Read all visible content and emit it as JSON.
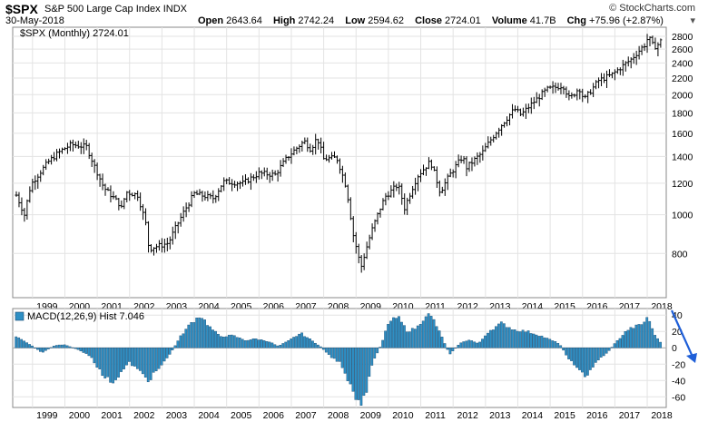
{
  "header": {
    "symbol": "$SPX",
    "name": "S&P 500 Large Cap Index",
    "exchange": "INDX",
    "date": "30-May-2018",
    "open_label": "Open",
    "open": "2643.64",
    "high_label": "High",
    "high": "2742.24",
    "low_label": "Low",
    "low": "2594.62",
    "close_label": "Close",
    "close": "2724.01",
    "volume_label": "Volume",
    "volume": "41.7B",
    "chg_label": "Chg",
    "chg": "+75.96 (+2.87%)",
    "logo": "© StockCharts.com"
  },
  "chart_data": [
    {
      "type": "bar",
      "title": "$SPX (Monthly) 2724.01",
      "log_scale": true,
      "ylim": [
        620,
        2950
      ],
      "yticks": [
        800,
        1000,
        1200,
        1400,
        1600,
        1800,
        2000,
        2200,
        2400,
        2600,
        2800
      ],
      "xticks": [
        "1999",
        "2000",
        "2001",
        "2002",
        "2003",
        "2004",
        "2005",
        "2006",
        "2007",
        "2008",
        "2009",
        "2010",
        "2011",
        "2012",
        "2013",
        "2014",
        "2015",
        "2016",
        "2017",
        "2018"
      ],
      "x_start_year": 1998.5,
      "x_end_year": 2018.42,
      "grid": true,
      "anchors_year_close": [
        [
          1998.5,
          1120
        ],
        [
          1998.75,
          1000
        ],
        [
          1998.95,
          1190
        ],
        [
          1999.5,
          1360
        ],
        [
          1999.8,
          1430
        ],
        [
          1999.95,
          1460
        ],
        [
          2000.2,
          1500
        ],
        [
          2000.67,
          1480
        ],
        [
          2000.9,
          1330
        ],
        [
          2001.2,
          1170
        ],
        [
          2001.7,
          1060
        ],
        [
          2001.75,
          1040
        ],
        [
          2001.9,
          1140
        ],
        [
          2002.25,
          1120
        ],
        [
          2002.5,
          950
        ],
        [
          2002.6,
          820
        ],
        [
          2002.75,
          830
        ],
        [
          2003.0,
          840
        ],
        [
          2003.2,
          850
        ],
        [
          2003.6,
          990
        ],
        [
          2004.0,
          1130
        ],
        [
          2004.6,
          1100
        ],
        [
          2004.9,
          1210
        ],
        [
          2005.5,
          1200
        ],
        [
          2006.0,
          1270
        ],
        [
          2006.5,
          1260
        ],
        [
          2006.9,
          1400
        ],
        [
          2007.4,
          1530
        ],
        [
          2007.6,
          1460
        ],
        [
          2007.8,
          1560
        ],
        [
          2008.0,
          1380
        ],
        [
          2008.4,
          1390
        ],
        [
          2008.7,
          1170
        ],
        [
          2008.9,
          900
        ],
        [
          2009.15,
          735
        ],
        [
          2009.5,
          920
        ],
        [
          2009.9,
          1110
        ],
        [
          2010.3,
          1190
        ],
        [
          2010.5,
          1040
        ],
        [
          2010.9,
          1250
        ],
        [
          2011.3,
          1360
        ],
        [
          2011.6,
          1140
        ],
        [
          2011.9,
          1260
        ],
        [
          2012.3,
          1400
        ],
        [
          2012.4,
          1310
        ],
        [
          2012.9,
          1430
        ],
        [
          2013.4,
          1640
        ],
        [
          2013.9,
          1840
        ],
        [
          2014.1,
          1780
        ],
        [
          2014.9,
          2060
        ],
        [
          2015.4,
          2110
        ],
        [
          2015.6,
          1950
        ],
        [
          2015.9,
          2080
        ],
        [
          2016.05,
          1940
        ],
        [
          2016.5,
          2170
        ],
        [
          2016.9,
          2240
        ],
        [
          2017.5,
          2450
        ],
        [
          2017.95,
          2680
        ],
        [
          2018.05,
          2820
        ],
        [
          2018.1,
          2710
        ],
        [
          2018.2,
          2640
        ],
        [
          2018.3,
          2650
        ],
        [
          2018.42,
          2724.01
        ]
      ]
    },
    {
      "type": "bar",
      "title": "MACD(12,26,9) Hist 7.046",
      "ylim": [
        -73,
        48
      ],
      "yticks": [
        40,
        20,
        0,
        -20,
        -40,
        -60
      ],
      "grid": true,
      "anchors_year_value": [
        [
          1998.5,
          14
        ],
        [
          1998.9,
          5
        ],
        [
          1999.3,
          -6
        ],
        [
          1999.7,
          3
        ],
        [
          2000.0,
          4
        ],
        [
          2000.4,
          -2
        ],
        [
          2000.8,
          -10
        ],
        [
          2001.2,
          -35
        ],
        [
          2001.5,
          -42
        ],
        [
          2001.75,
          -30
        ],
        [
          2002.0,
          -18
        ],
        [
          2002.3,
          -28
        ],
        [
          2002.6,
          -40
        ],
        [
          2002.8,
          -30
        ],
        [
          2003.0,
          -22
        ],
        [
          2003.3,
          -5
        ],
        [
          2003.6,
          15
        ],
        [
          2003.9,
          30
        ],
        [
          2004.2,
          40
        ],
        [
          2004.5,
          25
        ],
        [
          2004.8,
          14
        ],
        [
          2005.2,
          15
        ],
        [
          2005.6,
          9
        ],
        [
          2005.9,
          11
        ],
        [
          2006.3,
          8
        ],
        [
          2006.6,
          2
        ],
        [
          2006.9,
          8
        ],
        [
          2007.3,
          18
        ],
        [
          2007.6,
          10
        ],
        [
          2007.9,
          2
        ],
        [
          2008.2,
          -10
        ],
        [
          2008.5,
          -18
        ],
        [
          2008.8,
          -45
        ],
        [
          2009.1,
          -70
        ],
        [
          2009.3,
          -60
        ],
        [
          2009.5,
          -20
        ],
        [
          2009.8,
          5
        ],
        [
          2010.0,
          30
        ],
        [
          2010.3,
          38
        ],
        [
          2010.6,
          20
        ],
        [
          2010.9,
          25
        ],
        [
          2011.2,
          42
        ],
        [
          2011.4,
          35
        ],
        [
          2011.7,
          10
        ],
        [
          2011.9,
          -8
        ],
        [
          2012.2,
          5
        ],
        [
          2012.5,
          10
        ],
        [
          2012.8,
          5
        ],
        [
          2013.1,
          20
        ],
        [
          2013.5,
          30
        ],
        [
          2013.9,
          22
        ],
        [
          2014.3,
          20
        ],
        [
          2014.7,
          15
        ],
        [
          2015.0,
          10
        ],
        [
          2015.3,
          5
        ],
        [
          2015.6,
          -15
        ],
        [
          2015.9,
          -25
        ],
        [
          2016.1,
          -38
        ],
        [
          2016.4,
          -18
        ],
        [
          2016.8,
          -5
        ],
        [
          2017.0,
          5
        ],
        [
          2017.4,
          22
        ],
        [
          2017.9,
          30
        ],
        [
          2018.0,
          38
        ],
        [
          2018.15,
          25
        ],
        [
          2018.3,
          12
        ],
        [
          2018.42,
          7.046
        ]
      ]
    }
  ]
}
